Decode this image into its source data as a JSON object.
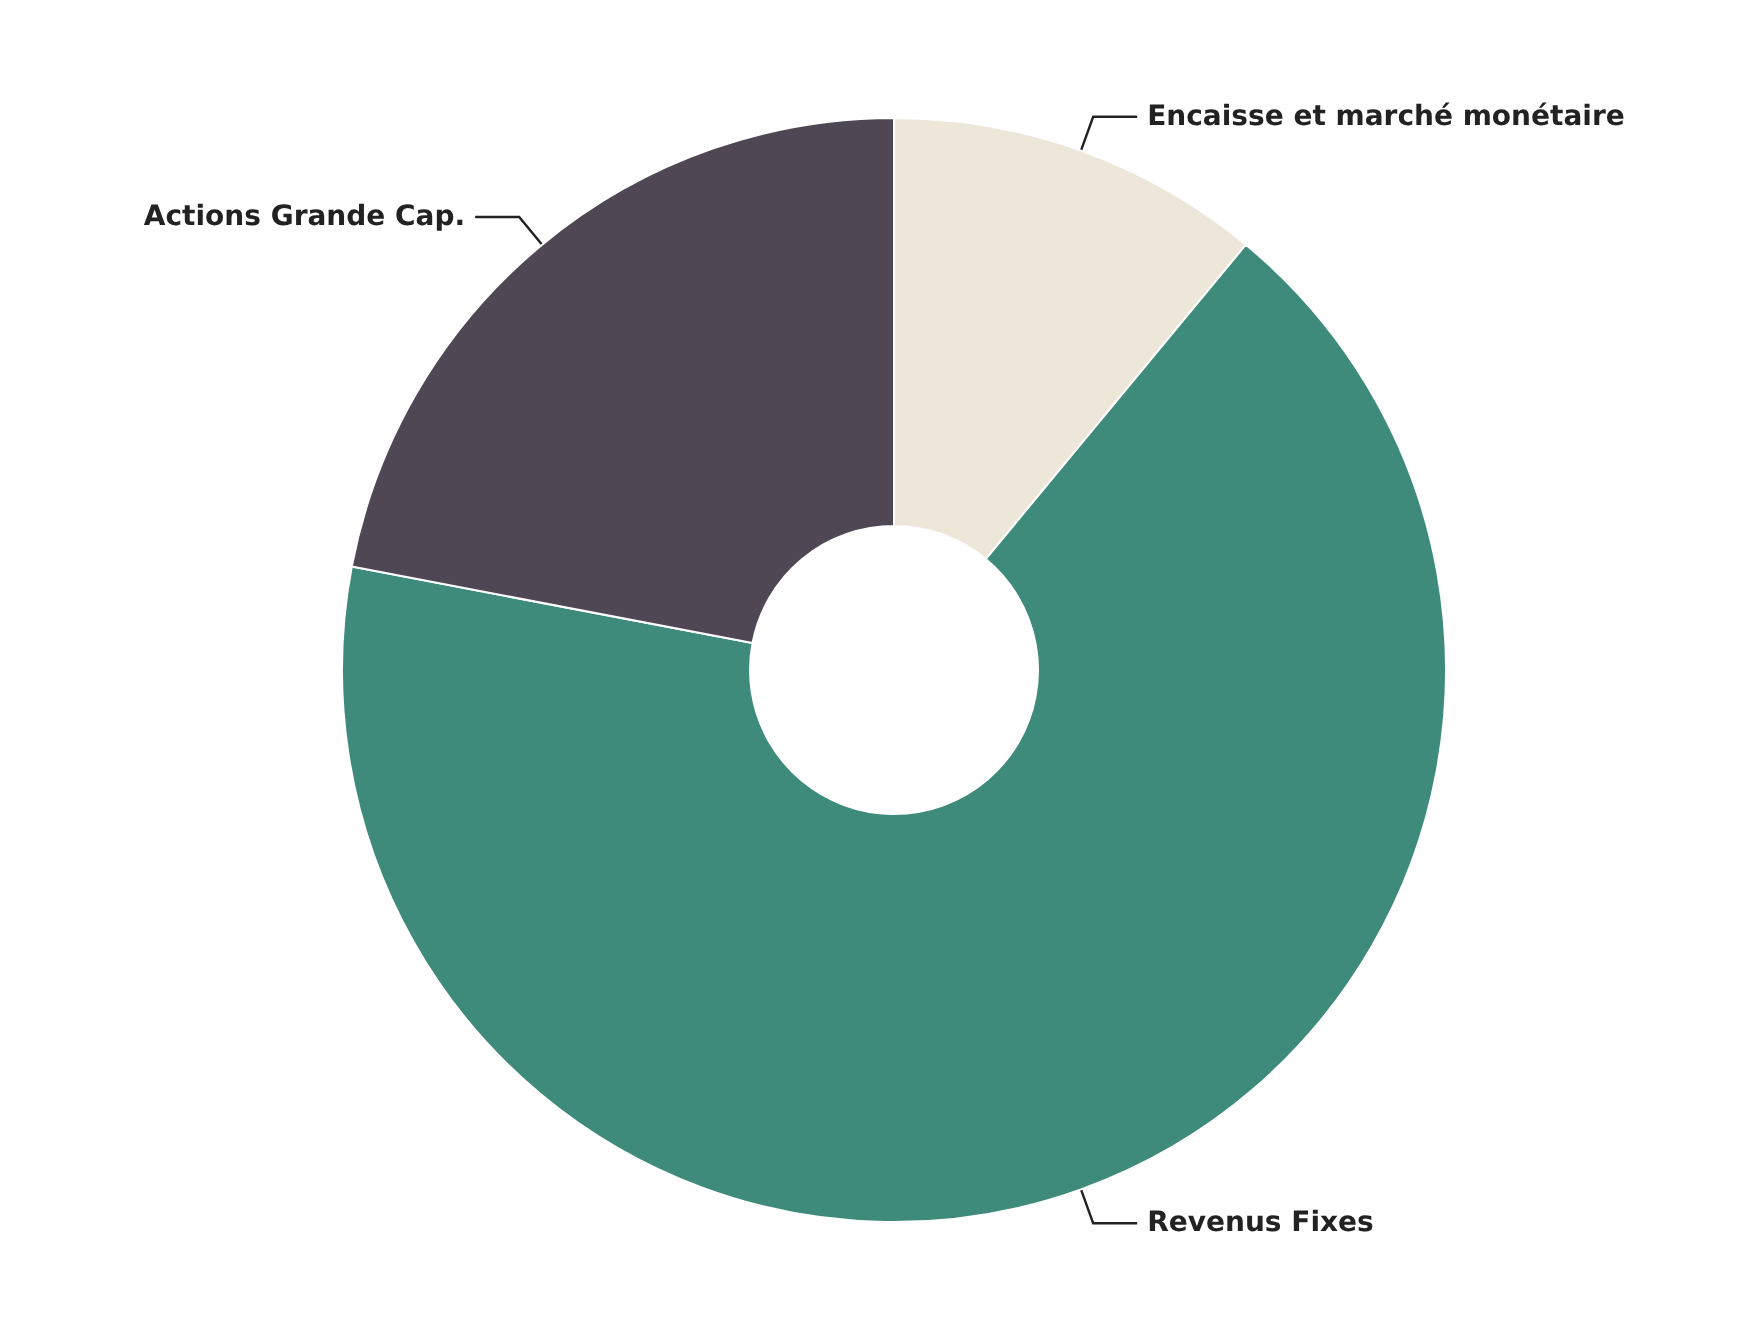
{
  "chart_data": {
    "type": "donut",
    "categories": [
      "Encaisse et marché monétaire",
      "Revenus Fixes",
      "Actions Grande Cap."
    ],
    "values": [
      11,
      67,
      22
    ],
    "colors": [
      "#ede7d9",
      "#3f8b7b",
      "#4f4753"
    ]
  }
}
